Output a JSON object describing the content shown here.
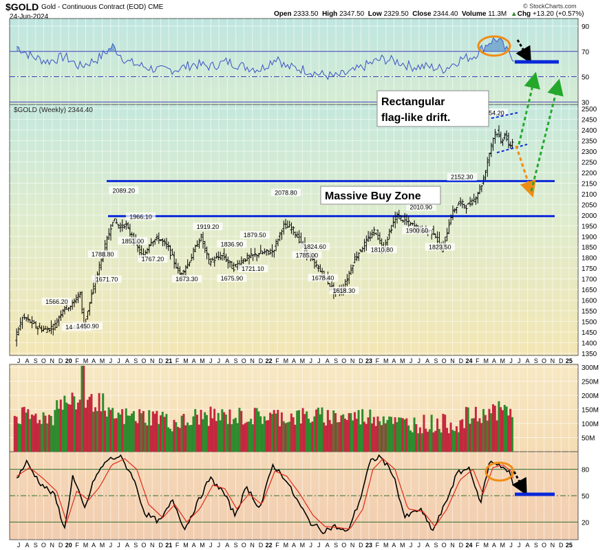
{
  "header": {
    "ticker": "$GOLD",
    "name": "Gold - Continuous Contract (EOD)",
    "exchange": "CME",
    "date": "24-Jun-2024",
    "open_label": "Open",
    "open": "2333.50",
    "high_label": "High",
    "high": "2347.50",
    "low_label": "Low",
    "low": "2329.50",
    "close_label": "Close",
    "close": "2344.40",
    "volume_label": "Volume",
    "volume": "11.3M",
    "chg_label": "Chg",
    "chg": "+13.20 (+0.57%)",
    "watermark": "© StockCharts.com"
  },
  "chart_data": [
    {
      "panel": "rsi",
      "type": "line",
      "ylim": [
        28,
        96
      ],
      "yticks": [
        90,
        70,
        50,
        30
      ],
      "reference_lines": [
        70,
        50,
        30
      ],
      "color": "#3a4fc4",
      "x_years": [
        2019.52,
        2019.67,
        2019.83,
        2020.0,
        2020.15,
        2020.33,
        2020.48,
        2020.62,
        2020.79,
        2020.96,
        2021.13,
        2021.29,
        2021.46,
        2021.62,
        2021.79,
        2021.96,
        2022.13,
        2022.2,
        2022.38,
        2022.54,
        2022.71,
        2022.88,
        2023.04,
        2023.17,
        2023.33,
        2023.46,
        2023.62,
        2023.79,
        2023.96,
        2024.08,
        2024.25,
        2024.33,
        2024.42,
        2024.5
      ],
      "values": [
        74,
        66,
        62,
        66,
        58,
        64,
        74,
        62,
        58,
        55,
        56,
        60,
        58,
        62,
        58,
        56,
        66,
        58,
        56,
        52,
        50,
        54,
        60,
        64,
        62,
        58,
        58,
        56,
        64,
        66,
        78,
        80,
        70,
        64
      ]
    },
    {
      "panel": "price",
      "type": "line",
      "title": "$GOLD (Weekly) 2344.40",
      "ylim": [
        1340,
        2520
      ],
      "yticks": [
        2500,
        2450,
        2400,
        2350,
        2300,
        2250,
        2200,
        2150,
        2100,
        2050,
        2000,
        1950,
        1900,
        1850,
        1800,
        1750,
        1700,
        1650,
        1600,
        1550,
        1500,
        1450,
        1400,
        1350
      ],
      "x_years": [
        2019.52,
        2019.6,
        2019.67,
        2019.75,
        2019.83,
        2019.92,
        2020.0,
        2020.1,
        2020.17,
        2020.21,
        2020.33,
        2020.5,
        2020.58,
        2020.62,
        2020.71,
        2020.8,
        2020.88,
        2020.96,
        2021.05,
        2021.17,
        2021.25,
        2021.38,
        2021.46,
        2021.6,
        2021.7,
        2021.8,
        2021.96,
        2022.1,
        2022.2,
        2022.29,
        2022.38,
        2022.5,
        2022.6,
        2022.71,
        2022.8,
        2022.92,
        2023.04,
        2023.12,
        2023.2,
        2023.33,
        2023.46,
        2023.58,
        2023.71,
        2023.79,
        2023.88,
        2023.96,
        2024.04,
        2024.12,
        2024.2,
        2024.29,
        2024.33,
        2024.38,
        2024.42,
        2024.46,
        2024.48
      ],
      "values": [
        1420,
        1520,
        1500,
        1470,
        1460,
        1480,
        1560,
        1580,
        1640,
        1480,
        1700,
        1980,
        1940,
        1960,
        1880,
        1800,
        1880,
        1890,
        1850,
        1720,
        1770,
        1900,
        1780,
        1810,
        1750,
        1790,
        1820,
        1830,
        1950,
        1940,
        1870,
        1780,
        1720,
        1640,
        1650,
        1800,
        1880,
        1930,
        1840,
        2000,
        1960,
        1930,
        1920,
        1830,
        2000,
        2060,
        2040,
        2080,
        2160,
        2350,
        2400,
        2340,
        2390,
        2310,
        2344
      ],
      "data_labels": [
        {
          "x": 2019.92,
          "y": 1566.2,
          "text": "1566.20"
        },
        {
          "x": 2020.12,
          "y": 1446.2,
          "text": "1446.20"
        },
        {
          "x": 2020.23,
          "y": 1450.9,
          "text": "1450.90"
        },
        {
          "x": 2020.38,
          "y": 1788.8,
          "text": "1788.80"
        },
        {
          "x": 2020.42,
          "y": 1671.7,
          "text": "1671.70"
        },
        {
          "x": 2020.59,
          "y": 2089.2,
          "text": "2089.20"
        },
        {
          "x": 2020.76,
          "y": 1966.1,
          "text": "1966.10"
        },
        {
          "x": 2020.68,
          "y": 1851.0,
          "text": "1851.00"
        },
        {
          "x": 2020.88,
          "y": 1767.2,
          "text": "1767.20"
        },
        {
          "x": 2021.22,
          "y": 1673.3,
          "text": "1673.30"
        },
        {
          "x": 2021.43,
          "y": 1919.2,
          "text": "1919.20"
        },
        {
          "x": 2021.67,
          "y": 1836.9,
          "text": "1836.90"
        },
        {
          "x": 2021.67,
          "y": 1675.9,
          "text": "1675.90"
        },
        {
          "x": 2021.9,
          "y": 1879.5,
          "text": "1879.50"
        },
        {
          "x": 2021.88,
          "y": 1721.1,
          "text": "1721.10"
        },
        {
          "x": 2022.21,
          "y": 2078.8,
          "text": "2078.80"
        },
        {
          "x": 2022.5,
          "y": 1824.6,
          "text": "1824.60"
        },
        {
          "x": 2022.42,
          "y": 1785.0,
          "text": "1785.00"
        },
        {
          "x": 2022.58,
          "y": 1678.4,
          "text": "1678.40"
        },
        {
          "x": 2022.79,
          "y": 1618.3,
          "text": "1618.30"
        },
        {
          "x": 2023.17,
          "y": 1810.8,
          "text": "1810.80"
        },
        {
          "x": 2023.52,
          "y": 1900.6,
          "text": "1900.60"
        },
        {
          "x": 2023.56,
          "y": 2010.9,
          "text": "2010.90"
        },
        {
          "x": 2023.75,
          "y": 1823.5,
          "text": "1823.50"
        },
        {
          "x": 2023.97,
          "y": 2152.3,
          "text": "2152.30"
        },
        {
          "x": 2024.28,
          "y": 2454.2,
          "text": "2454.20"
        }
      ],
      "horizontal_lines": [
        2160,
        1995
      ],
      "annotations": [
        {
          "text": "Rectangular",
          "text2": "flag-like drift.",
          "role": "callout"
        },
        {
          "text": "Massive Buy Zone",
          "role": "zone-label"
        }
      ]
    },
    {
      "panel": "volume",
      "type": "bar",
      "yticks": [
        "300M",
        "250M",
        "200M",
        "150M",
        "100M",
        "50M"
      ],
      "tick_values": [
        300,
        250,
        200,
        150,
        100,
        50
      ],
      "ylim": [
        0,
        310
      ],
      "unit": "M"
    },
    {
      "panel": "stochastic",
      "type": "line",
      "ylim": [
        0,
        100
      ],
      "yticks": [
        80,
        50,
        20
      ],
      "reference_lines": [
        80,
        50,
        20
      ],
      "series": [
        {
          "color": "#000000",
          "x_years": [
            2019.52,
            2019.62,
            2019.75,
            2019.9,
            2020.0,
            2020.08,
            2020.2,
            2020.3,
            2020.42,
            2020.55,
            2020.68,
            2020.8,
            2020.95,
            2021.08,
            2021.2,
            2021.32,
            2021.45,
            2021.58,
            2021.7,
            2021.82,
            2021.95,
            2022.08,
            2022.2,
            2022.32,
            2022.45,
            2022.58,
            2022.7,
            2022.82,
            2022.95,
            2023.05,
            2023.15,
            2023.28,
            2023.4,
            2023.55,
            2023.68,
            2023.8,
            2023.92,
            2024.05,
            2024.15,
            2024.25,
            2024.35,
            2024.45,
            2024.48
          ],
          "values": [
            70,
            88,
            65,
            50,
            12,
            72,
            35,
            70,
            90,
            95,
            72,
            30,
            20,
            45,
            12,
            40,
            70,
            55,
            28,
            60,
            35,
            85,
            70,
            45,
            20,
            10,
            15,
            8,
            45,
            88,
            95,
            75,
            25,
            35,
            10,
            40,
            75,
            82,
            40,
            90,
            85,
            75,
            62
          ]
        },
        {
          "color": "#e02a1c",
          "x_years": [
            2019.52,
            2019.65,
            2019.78,
            2019.92,
            2020.02,
            2020.12,
            2020.24,
            2020.35,
            2020.47,
            2020.6,
            2020.72,
            2020.84,
            2020.98,
            2021.1,
            2021.22,
            2021.35,
            2021.48,
            2021.6,
            2021.72,
            2021.84,
            2021.97,
            2022.1,
            2022.22,
            2022.35,
            2022.48,
            2022.6,
            2022.72,
            2022.85,
            2022.98,
            2023.08,
            2023.18,
            2023.3,
            2023.43,
            2023.58,
            2023.7,
            2023.82,
            2023.95,
            2024.08,
            2024.18,
            2024.28,
            2024.38,
            2024.46,
            2024.48
          ],
          "values": [
            72,
            82,
            70,
            55,
            20,
            55,
            45,
            60,
            85,
            92,
            80,
            40,
            25,
            40,
            20,
            35,
            62,
            58,
            35,
            52,
            40,
            78,
            72,
            52,
            28,
            15,
            14,
            12,
            35,
            80,
            92,
            80,
            35,
            32,
            15,
            35,
            68,
            80,
            52,
            82,
            85,
            78,
            70
          ]
        }
      ]
    }
  ],
  "x_axis": {
    "ticks": [
      {
        "x": 2019.54,
        "t": "J"
      },
      {
        "x": 2019.625,
        "t": "A"
      },
      {
        "x": 2019.71,
        "t": "S"
      },
      {
        "x": 2019.79,
        "t": "O"
      },
      {
        "x": 2019.875,
        "t": "N"
      },
      {
        "x": 2019.96,
        "t": "D"
      },
      {
        "x": 2020.04,
        "t": "20",
        "bold": true
      },
      {
        "x": 2020.125,
        "t": "F"
      },
      {
        "x": 2020.21,
        "t": "M"
      },
      {
        "x": 2020.29,
        "t": "A"
      },
      {
        "x": 2020.375,
        "t": "M"
      },
      {
        "x": 2020.46,
        "t": "J"
      },
      {
        "x": 2020.54,
        "t": "J"
      },
      {
        "x": 2020.625,
        "t": "A"
      },
      {
        "x": 2020.71,
        "t": "S"
      },
      {
        "x": 2020.79,
        "t": "O"
      },
      {
        "x": 2020.875,
        "t": "N"
      },
      {
        "x": 2020.96,
        "t": "D"
      },
      {
        "x": 2021.04,
        "t": "21",
        "bold": true
      },
      {
        "x": 2021.125,
        "t": "F"
      },
      {
        "x": 2021.21,
        "t": "M"
      },
      {
        "x": 2021.29,
        "t": "A"
      },
      {
        "x": 2021.375,
        "t": "M"
      },
      {
        "x": 2021.46,
        "t": "J"
      },
      {
        "x": 2021.54,
        "t": "J"
      },
      {
        "x": 2021.625,
        "t": "A"
      },
      {
        "x": 2021.71,
        "t": "S"
      },
      {
        "x": 2021.79,
        "t": "O"
      },
      {
        "x": 2021.875,
        "t": "N"
      },
      {
        "x": 2021.96,
        "t": "D"
      },
      {
        "x": 2022.04,
        "t": "22",
        "bold": true
      },
      {
        "x": 2022.125,
        "t": "F"
      },
      {
        "x": 2022.21,
        "t": "M"
      },
      {
        "x": 2022.29,
        "t": "A"
      },
      {
        "x": 2022.375,
        "t": "M"
      },
      {
        "x": 2022.46,
        "t": "J"
      },
      {
        "x": 2022.54,
        "t": "J"
      },
      {
        "x": 2022.625,
        "t": "A"
      },
      {
        "x": 2022.71,
        "t": "S"
      },
      {
        "x": 2022.79,
        "t": "O"
      },
      {
        "x": 2022.875,
        "t": "N"
      },
      {
        "x": 2022.96,
        "t": "D"
      },
      {
        "x": 2023.04,
        "t": "23",
        "bold": true
      },
      {
        "x": 2023.125,
        "t": "F"
      },
      {
        "x": 2023.21,
        "t": "M"
      },
      {
        "x": 2023.29,
        "t": "A"
      },
      {
        "x": 2023.375,
        "t": "M"
      },
      {
        "x": 2023.46,
        "t": "J"
      },
      {
        "x": 2023.54,
        "t": "J"
      },
      {
        "x": 2023.625,
        "t": "A"
      },
      {
        "x": 2023.71,
        "t": "S"
      },
      {
        "x": 2023.79,
        "t": "O"
      },
      {
        "x": 2023.875,
        "t": "N"
      },
      {
        "x": 2023.96,
        "t": "D"
      },
      {
        "x": 2024.04,
        "t": "24",
        "bold": true
      },
      {
        "x": 2024.125,
        "t": "F"
      },
      {
        "x": 2024.21,
        "t": "M"
      },
      {
        "x": 2024.29,
        "t": "A"
      },
      {
        "x": 2024.375,
        "t": "M"
      },
      {
        "x": 2024.46,
        "t": "J"
      },
      {
        "x": 2024.54,
        "t": "J"
      },
      {
        "x": 2024.625,
        "t": "A"
      },
      {
        "x": 2024.71,
        "t": "S"
      },
      {
        "x": 2024.79,
        "t": "O"
      },
      {
        "x": 2024.875,
        "t": "N"
      },
      {
        "x": 2024.96,
        "t": "D"
      },
      {
        "x": 2025.04,
        "t": "25",
        "bold": true
      }
    ]
  },
  "colors": {
    "up": "#2e8b2e",
    "down": "#c4283e",
    "blue": "#0a28d8",
    "orange": "#f08c14",
    "green_dash": "#24a82c"
  }
}
